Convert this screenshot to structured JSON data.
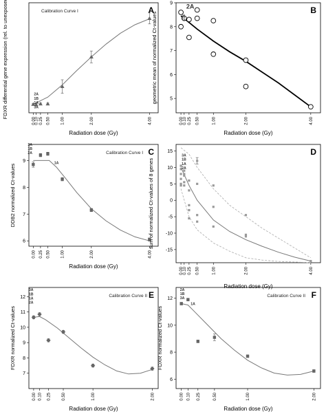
{
  "chart_data": [
    {
      "panel": "A",
      "type": "line",
      "subtitle": "Calibration Curve I",
      "xlabel": "Radiation dose (Gy)",
      "ylabel": "FDXR differential gene expression (rel. to unexposed)",
      "xticks": [
        0.0,
        0.1,
        0.25,
        0.5,
        1.0,
        2.0,
        4.0
      ],
      "xtick_labels": [
        "0.00",
        "0.10",
        "0.25",
        "0.50",
        "1.00",
        "2.00",
        "4.00"
      ],
      "xlim": [
        -0.15,
        4.3
      ],
      "ylim": [
        -1,
        25
      ],
      "yticks": [],
      "grid": false,
      "marker_color": "#666666",
      "series": [
        {
          "x": [
            0.0,
            0.1,
            0.25,
            0.5,
            1.0,
            2.0,
            4.0
          ],
          "y": [
            1.0,
            0.9,
            1.1,
            1.1,
            5.2,
            12.2,
            21.3
          ],
          "err": [
            0.2,
            0.2,
            0.2,
            0.2,
            1.6,
            1.4,
            1.3
          ]
        }
      ],
      "fit": {
        "x": [
          0,
          0.5,
          1,
          1.5,
          2,
          2.5,
          3,
          3.5,
          4
        ],
        "y": [
          1.0,
          2.7,
          5.6,
          9.0,
          12.2,
          15.2,
          17.8,
          19.8,
          21.2
        ]
      },
      "annotations": [
        "2A",
        "1B",
        "1A",
        "3A"
      ]
    },
    {
      "panel": "B",
      "type": "scatter",
      "subtitle": "",
      "xlabel": "Radiation dose (Gy)",
      "ylabel": "geometric mean of normalized Ct-values",
      "xticks": [
        0.0,
        0.1,
        0.25,
        0.5,
        1.0,
        2.0,
        4.0
      ],
      "xtick_labels": [
        "0.00",
        "0.10",
        "0.25",
        "0.50",
        "1.00",
        "2.00",
        "4.00"
      ],
      "xlim": [
        -0.15,
        4.3
      ],
      "ylim": [
        4.4,
        9.0
      ],
      "yticks": [
        5,
        6,
        7,
        8,
        9
      ],
      "grid": false,
      "series": [
        {
          "x": [
            0.0,
            0.0,
            0.1,
            0.25,
            0.25,
            0.5,
            0.5,
            1.0,
            1.0,
            2.0,
            2.0,
            4.0
          ],
          "y": [
            8.6,
            8.0,
            8.35,
            8.3,
            7.55,
            8.7,
            8.35,
            8.25,
            6.85,
            6.6,
            5.5,
            4.65
          ]
        }
      ],
      "fit": {
        "x": [
          0,
          0.5,
          1,
          1.5,
          2,
          2.5,
          3,
          3.5,
          4
        ],
        "y": [
          8.45,
          7.9,
          7.4,
          6.95,
          6.55,
          6.1,
          5.65,
          5.15,
          4.65
        ]
      },
      "annotations": [
        "2A",
        "3A",
        "1B",
        "1A"
      ]
    },
    {
      "panel": "C",
      "type": "line",
      "subtitle": "Calibration Curve I",
      "xlabel": "Radiation dose (Gy)",
      "ylabel": "DDB2 normalized Ct-values",
      "xticks": [
        0.0,
        0.25,
        0.5,
        1.0,
        2.0,
        4.0
      ],
      "xtick_labels": [
        "0.00",
        "0.25",
        "0.50",
        "1.00",
        "2.00",
        "4.00"
      ],
      "xlim": [
        -0.15,
        4.3
      ],
      "ylim": [
        5.8,
        9.6
      ],
      "yticks": [
        6,
        7,
        8,
        9
      ],
      "grid": false,
      "marker_color": "#666666",
      "series": [
        {
          "x": [
            0.0,
            0.25,
            0.5,
            1.0,
            2.0,
            4.0
          ],
          "y": [
            8.85,
            9.2,
            9.25,
            8.3,
            7.15,
            6.05
          ],
          "err": [
            0.1,
            0.06,
            0.06,
            0.06,
            0.06,
            0.06
          ]
        }
      ],
      "fit": {
        "x": [
          0,
          0.3,
          0.55,
          0.8,
          1.1,
          1.5,
          2,
          2.5,
          3,
          3.5,
          4
        ],
        "y": [
          9.0,
          9.0,
          9.0,
          8.75,
          8.35,
          7.8,
          7.2,
          6.75,
          6.4,
          6.15,
          6.0
        ]
      },
      "annotations": [
        "3A",
        "1B",
        "2A",
        "1A"
      ]
    },
    {
      "panel": "D",
      "type": "scatter",
      "subtitle": "",
      "xlabel": "Radiation dose (Gy)",
      "ylabel": "sum of normalized Ct-values of 8 genes",
      "xticks": [
        0.0,
        0.1,
        0.25,
        0.5,
        1.0,
        2.0,
        4.0
      ],
      "xtick_labels": [
        "0.00",
        "0.10",
        "0.25",
        "0.50",
        "1.00",
        "2.00",
        "4.00"
      ],
      "xlim": [
        -0.15,
        4.3
      ],
      "ylim": [
        -19,
        17
      ],
      "yticks": [
        -15,
        -10,
        -5,
        0,
        5,
        10,
        15
      ],
      "grid": false,
      "series": [
        {
          "x": [
            0,
            0,
            0,
            0,
            0,
            0,
            0.1,
            0.1,
            0.1,
            0.1,
            0.1,
            0.25,
            0.25,
            0.25,
            0.25,
            0.25,
            0.5,
            0.5,
            0.5,
            0.5,
            1.0,
            1.0,
            1.0,
            2.0,
            2.0,
            2.0,
            4.0
          ],
          "y": [
            10.5,
            9.5,
            8.0,
            6.5,
            5.0,
            4.5,
            9.0,
            8.0,
            7.5,
            5.5,
            4.5,
            6.0,
            3.0,
            -1.5,
            -3.0,
            -5.5,
            12.0,
            5.0,
            -4.5,
            -6.5,
            4.5,
            -2.0,
            -8.0,
            -4.5,
            -10.5,
            -11.0,
            -18.5
          ],
          "err": [
            0,
            0,
            0,
            0,
            0,
            0,
            0,
            0,
            0,
            0,
            0,
            0,
            0,
            0,
            0,
            0,
            1.0,
            0,
            0,
            0,
            0,
            0,
            0,
            0,
            0,
            0,
            0
          ]
        }
      ],
      "fit": {
        "x": [
          0,
          0.25,
          0.5,
          1,
          1.5,
          2,
          2.5,
          3,
          3.5,
          4
        ],
        "y": [
          10,
          4.5,
          0,
          -6,
          -9.5,
          -12,
          -14,
          -15.8,
          -17.3,
          -18.5
        ]
      },
      "band_upper": {
        "x": [
          0,
          0.25,
          0.5,
          1,
          1.5,
          2,
          2.5,
          3,
          3.5,
          4
        ],
        "y": [
          16,
          14,
          10,
          3.5,
          -1.5,
          -5,
          -8.5,
          -11.5,
          -14.5,
          -17.5
        ]
      },
      "band_lower": {
        "x": [
          0,
          0.25,
          0.5,
          1,
          1.5,
          2,
          2.5,
          3,
          3.5,
          4
        ],
        "y": [
          3.5,
          -5,
          -9,
          -13,
          -15.5,
          -17.5,
          -18.2,
          -18.6,
          -18.8,
          -19
        ]
      },
      "annotations": [
        "3A",
        "1B",
        "1A",
        "2A"
      ]
    },
    {
      "panel": "E",
      "type": "line",
      "subtitle": "Calibration Curve II",
      "xlabel": "Radiation dose (Gy)",
      "ylabel": "FDXR normalized Ct-values",
      "xticks": [
        0.0,
        0.1,
        0.25,
        0.5,
        1.0,
        2.0
      ],
      "xtick_labels": [
        "0.00",
        "0.10",
        "0.25",
        "0.50",
        "1.00",
        "2.00"
      ],
      "xlim": [
        -0.08,
        2.1
      ],
      "ylim": [
        6.0,
        12.6
      ],
      "yticks": [
        7,
        8,
        9,
        10,
        11,
        12
      ],
      "grid": false,
      "marker_color": "#666666",
      "series": [
        {
          "x": [
            0.0,
            0.1,
            0.25,
            0.5,
            1.0,
            2.0
          ],
          "y": [
            10.65,
            10.85,
            9.15,
            9.7,
            7.5,
            7.3
          ],
          "err": [
            0.1,
            0.1,
            0.1,
            0.1,
            0.1,
            0.1
          ]
        }
      ],
      "fit": {
        "x": [
          0,
          0.1,
          0.2,
          0.4,
          0.6,
          0.8,
          1.0,
          1.2,
          1.4,
          1.6,
          1.8,
          2.0
        ],
        "y": [
          10.65,
          10.7,
          10.5,
          9.95,
          9.3,
          8.65,
          8.05,
          7.55,
          7.15,
          6.95,
          7.0,
          7.25
        ]
      },
      "annotations": [
        "3A",
        "1B",
        "1A",
        "2A"
      ]
    },
    {
      "panel": "F",
      "type": "line",
      "subtitle": "Calibration Curve II",
      "xlabel": "Radiation dose (Gy)",
      "ylabel": "FDXR normalized Ct-values",
      "xticks": [
        0.0,
        0.1,
        0.25,
        0.5,
        1.0,
        2.0
      ],
      "xtick_labels": [
        "0.00",
        "0.10",
        "0.25",
        "0.50",
        "1.00",
        "2.00"
      ],
      "xlim": [
        -0.08,
        2.1
      ],
      "ylim": [
        5.3,
        12.8
      ],
      "yticks": [
        6,
        8,
        10,
        12
      ],
      "grid": false,
      "marker_color": "#666666",
      "series": [
        {
          "x": [
            0.0,
            0.1,
            0.25,
            0.5,
            1.0,
            2.0
          ],
          "y": [
            11.6,
            11.9,
            8.8,
            9.1,
            7.7,
            6.6
          ],
          "err": [
            0.1,
            0.1,
            0.1,
            0.25,
            0.1,
            0.1
          ]
        }
      ],
      "fit": {
        "x": [
          0,
          0.1,
          0.2,
          0.4,
          0.6,
          0.8,
          1.0,
          1.2,
          1.4,
          1.6,
          1.8,
          2.0
        ],
        "y": [
          11.6,
          11.5,
          11.0,
          10.0,
          9.0,
          8.15,
          7.4,
          6.85,
          6.45,
          6.3,
          6.35,
          6.6
        ]
      },
      "annotations": [
        "2A",
        "1B",
        "3A",
        "1A"
      ]
    }
  ]
}
